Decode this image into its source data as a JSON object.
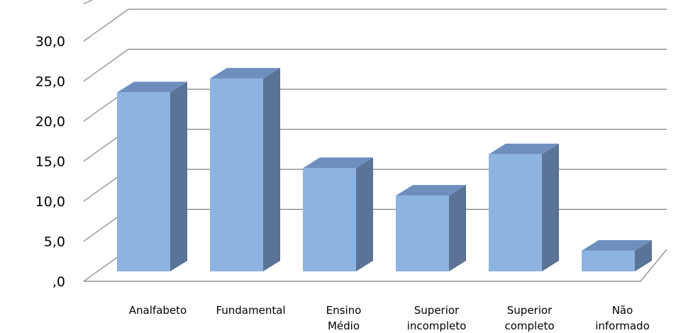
{
  "chart_data": {
    "type": "bar",
    "title": "",
    "xlabel": "",
    "ylabel": "",
    "style": "3d-clustered-column",
    "categories": [
      [
        "Analfabeto"
      ],
      [
        "Fundamental"
      ],
      [
        "Ensino",
        "Médio"
      ],
      [
        "Superior",
        "incompleto"
      ],
      [
        "Superior",
        "completo"
      ],
      [
        "Não",
        "informado"
      ]
    ],
    "values": [
      26.0,
      28.0,
      15.0,
      11.0,
      17.0,
      3.0
    ],
    "ylim": [
      0,
      30
    ],
    "yticks": [
      0,
      5,
      10,
      15,
      20,
      25,
      30
    ],
    "ytick_labels": [
      ",0",
      "5,0",
      "10,0",
      "15,0",
      "20,0",
      "25,0",
      "30,0"
    ],
    "grid": true,
    "legend": "none",
    "colors": {
      "bar_front": "#8DB3E2",
      "bar_side": "#5A7396",
      "bar_top": "#6E8FBD",
      "grid": "#808080"
    }
  }
}
